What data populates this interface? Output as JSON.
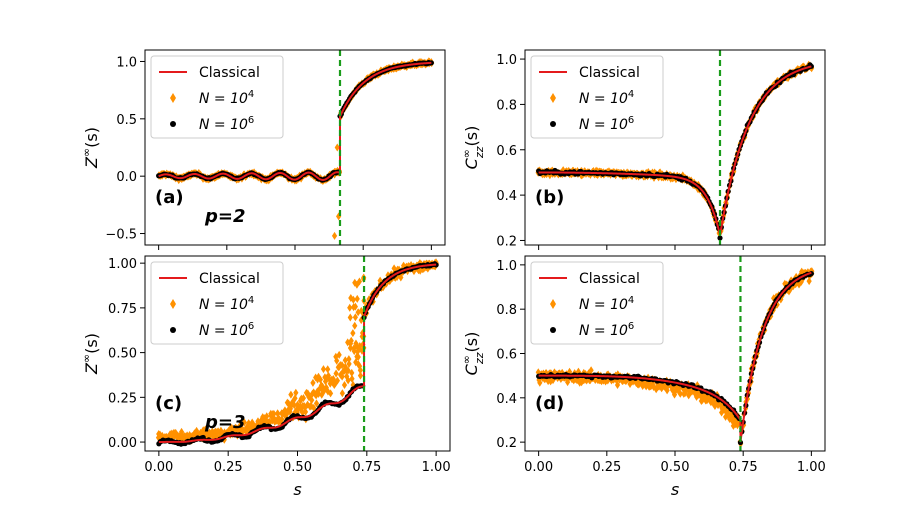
{
  "figure": {
    "xlabel": "s",
    "colors": {
      "classical": "#e41a1c",
      "n1e4": "#ff9100",
      "n1e6": "#000000",
      "transition": "#1a9c1a"
    },
    "legend": {
      "classical": "Classical",
      "n1e4_prefix": "N = 10",
      "n1e4_exp": "4",
      "n1e6_prefix": "N = 10",
      "n1e6_exp": "6"
    }
  },
  "chart_data": [
    {
      "id": "a",
      "type": "scatter",
      "panel_label": "(a)",
      "annotation": "p=2",
      "ylabel_main": "Z",
      "ylabel_sup": "∞",
      "ylabel_tail": "(s)",
      "xlim": [
        -0.05,
        1.05
      ],
      "ylim": [
        -0.6,
        1.1
      ],
      "xticks": [
        0.0,
        0.25,
        0.5,
        0.75,
        1.0
      ],
      "xtick_labels": [],
      "yticks": [
        -0.5,
        0.0,
        0.5,
        1.0
      ],
      "ytick_labels": [
        "−0.5",
        "0.0",
        "0.5",
        "1.0"
      ],
      "transition_s": 0.665,
      "legend_position": "top-left",
      "series": [
        "Classical",
        "N = 10^4",
        "N = 10^6"
      ]
    },
    {
      "id": "b",
      "type": "scatter",
      "panel_label": "(b)",
      "annotation": "",
      "ylabel_main": "C",
      "ylabel_sup": "∞",
      "ylabel_sub": "zz",
      "ylabel_tail": "(s)",
      "xlim": [
        -0.05,
        1.05
      ],
      "ylim": [
        0.18,
        1.04
      ],
      "xticks": [
        0.0,
        0.25,
        0.5,
        0.75,
        1.0
      ],
      "xtick_labels": [],
      "yticks": [
        0.2,
        0.4,
        0.6,
        0.8,
        1.0
      ],
      "ytick_labels": [
        "0.2",
        "0.4",
        "0.6",
        "0.8",
        "1.0"
      ],
      "transition_s": 0.665,
      "legend_position": "top-left",
      "series": [
        "Classical",
        "N = 10^4",
        "N = 10^6"
      ]
    },
    {
      "id": "c",
      "type": "scatter",
      "panel_label": "(c)",
      "annotation": "p=3",
      "ylabel_main": "Z",
      "ylabel_sup": "∞",
      "ylabel_tail": "(s)",
      "xlim": [
        -0.05,
        1.05
      ],
      "ylim": [
        -0.05,
        1.04
      ],
      "xticks": [
        0.0,
        0.25,
        0.5,
        0.75,
        1.0
      ],
      "xtick_labels": [
        "0.00",
        "0.25",
        "0.50",
        "0.75",
        "1.00"
      ],
      "yticks": [
        0.0,
        0.25,
        0.5,
        0.75,
        1.0
      ],
      "ytick_labels": [
        "0.00",
        "0.25",
        "0.50",
        "0.75",
        "1.00"
      ],
      "transition_s": 0.74,
      "legend_position": "top-left",
      "series": [
        "Classical",
        "N = 10^4",
        "N = 10^6"
      ]
    },
    {
      "id": "d",
      "type": "scatter",
      "panel_label": "(d)",
      "annotation": "",
      "ylabel_main": "C",
      "ylabel_sup": "∞",
      "ylabel_sub": "zz",
      "ylabel_tail": "(s)",
      "xlim": [
        -0.05,
        1.05
      ],
      "ylim": [
        0.16,
        1.04
      ],
      "xticks": [
        0.0,
        0.25,
        0.5,
        0.75,
        1.0
      ],
      "xtick_labels": [
        "0.00",
        "0.25",
        "0.50",
        "0.75",
        "1.00"
      ],
      "yticks": [
        0.2,
        0.4,
        0.6,
        0.8,
        1.0
      ],
      "ytick_labels": [
        "0.2",
        "0.4",
        "0.6",
        "0.8",
        "1.0"
      ],
      "transition_s": 0.74,
      "legend_position": "top-left",
      "series": [
        "Classical",
        "N = 10^4",
        "N = 10^6"
      ]
    }
  ]
}
